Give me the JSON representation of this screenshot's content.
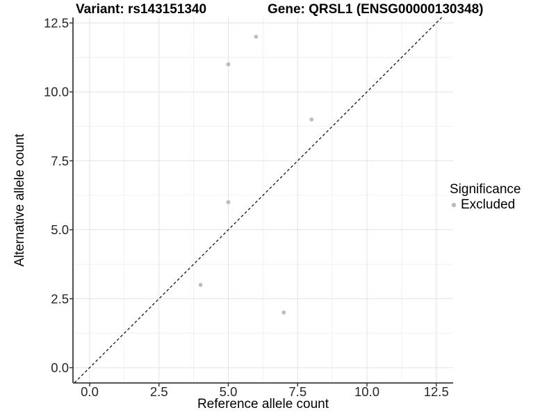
{
  "header": {
    "variant_title": "Variant: rs143151340",
    "gene_title": "Gene: QRSL1 (ENSG00000130348)"
  },
  "legend": {
    "title": "Significance",
    "items": [
      {
        "label": "Excluded",
        "color": "#bcbcbc"
      }
    ]
  },
  "colors": {
    "background": "#ffffff",
    "grid_major": "#e2e2e2",
    "grid_minor": "#f0f0f0",
    "axis_line": "#3c3c3c",
    "tick_mark": "#333333",
    "tick_text": "#262626",
    "reference_line": "#141414",
    "point": "#bcbcbc"
  },
  "chart_data": {
    "type": "scatter",
    "title_left": "Variant: rs143151340",
    "title_right": "Gene: QRSL1 (ENSG00000130348)",
    "xlabel": "Reference allele count",
    "ylabel": "Alternative allele count",
    "xlim": [
      -0.6,
      13.1
    ],
    "ylim": [
      -0.55,
      12.7
    ],
    "x_ticks": [
      0,
      2.5,
      5,
      7.5,
      10,
      12.5
    ],
    "y_ticks": [
      0,
      2.5,
      5,
      7.5,
      10,
      12.5
    ],
    "x_tick_labels": [
      "0.0",
      "2.5",
      "5.0",
      "7.5",
      "10.0",
      "12.5"
    ],
    "y_tick_labels": [
      "0.0",
      "2.5",
      "5.0",
      "7.5",
      "10.0",
      "12.5"
    ],
    "x_minor_ticks": [
      1.25,
      3.75,
      6.25,
      8.75,
      11.25
    ],
    "y_minor_ticks": [
      1.25,
      3.75,
      6.25,
      8.75,
      11.25
    ],
    "grid": "major+minor",
    "legend_position": "right-center",
    "series": [
      {
        "name": "Excluded",
        "color": "#bcbcbc",
        "marker": "circle",
        "points": [
          [
            6,
            12
          ],
          [
            5,
            11
          ],
          [
            8,
            9
          ],
          [
            5,
            6
          ],
          [
            4,
            3
          ],
          [
            7,
            2
          ]
        ]
      }
    ],
    "reference_line": {
      "kind": "identity",
      "equation": "y = x",
      "linestyle": "dashed",
      "color": "#141414"
    }
  }
}
